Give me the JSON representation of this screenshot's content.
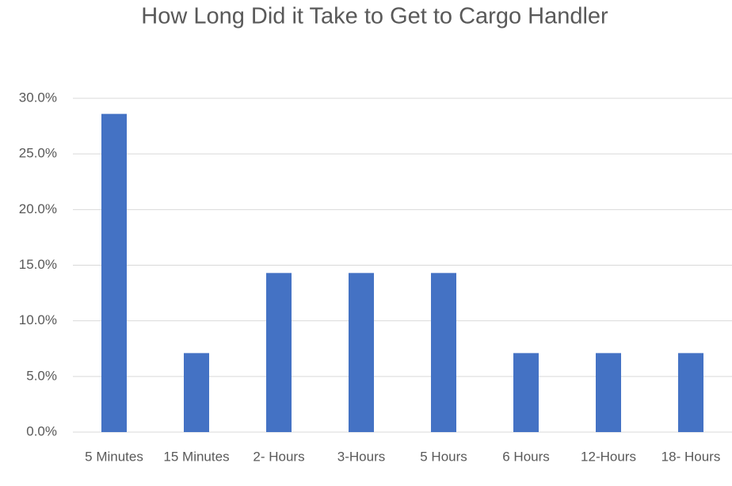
{
  "chart_data": {
    "type": "bar",
    "title": "How Long Did it Take to Get to Cargo Handler",
    "categories": [
      "5 Minutes",
      "15 Minutes",
      "2- Hours",
      "3-Hours",
      "5 Hours",
      "6 Hours",
      "12-Hours",
      "18- Hours"
    ],
    "values": [
      28.6,
      7.1,
      14.3,
      14.3,
      14.3,
      7.1,
      7.1,
      7.1
    ],
    "color": "#4472c4",
    "ylim": [
      0,
      30
    ],
    "yticks": [
      {
        "value": 0,
        "label": "0.0%"
      },
      {
        "value": 5,
        "label": "5.0%"
      },
      {
        "value": 10,
        "label": "10.0%"
      },
      {
        "value": 15,
        "label": "15.0%"
      },
      {
        "value": 20,
        "label": "20.0%"
      },
      {
        "value": 25,
        "label": "25.0%"
      },
      {
        "value": 30,
        "label": "30.0%"
      }
    ],
    "grid": true
  }
}
